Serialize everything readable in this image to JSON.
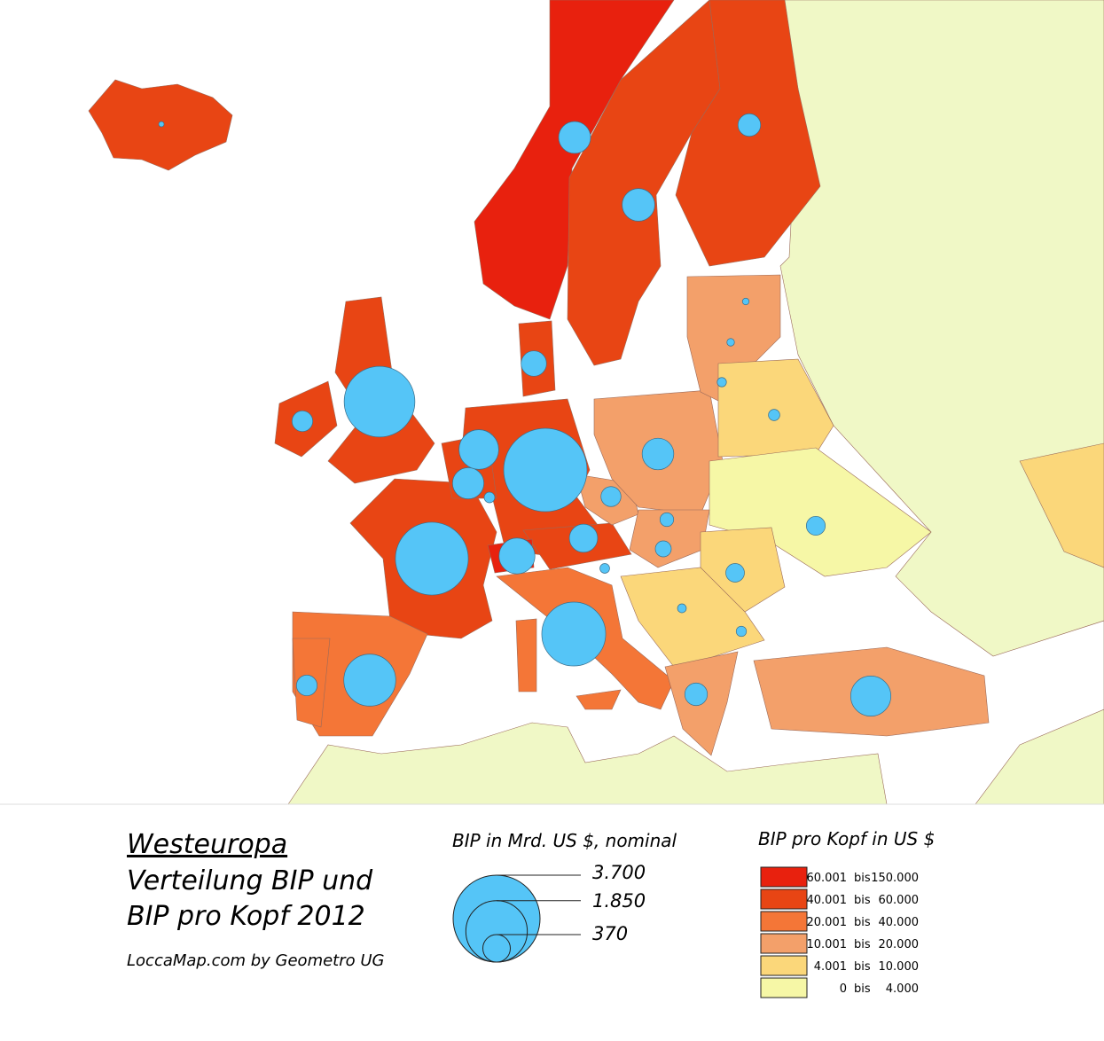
{
  "title": "Westeuropa",
  "subtitle": [
    "Verteilung BIP und",
    "BIP pro Kopf 2012"
  ],
  "credit": "LoccaMap.com by Geometro UG",
  "size_legend": {
    "title": "BIP in Mrd. US $, nominal",
    "steps": [
      {
        "value": 3700,
        "label": "3.700"
      },
      {
        "value": 1850,
        "label": "1.850"
      },
      {
        "value": 370,
        "label": "370"
      }
    ],
    "color": "#55c5f7"
  },
  "color_legend": {
    "title": "BIP pro Kopf in US $",
    "word": "bis",
    "classes": [
      {
        "color": "#e8210e",
        "from": {
          "value": 60001,
          "label": "60.001"
        },
        "to": {
          "value": 150000,
          "label": "150.000"
        }
      },
      {
        "color": "#e84514",
        "from": {
          "value": 40001,
          "label": "40.001"
        },
        "to": {
          "value": 60000,
          "label": "60.000"
        }
      },
      {
        "color": "#f47637",
        "from": {
          "value": 20001,
          "label": "20.001"
        },
        "to": {
          "value": 40000,
          "label": "40.000"
        }
      },
      {
        "color": "#f3a06a",
        "from": {
          "value": 10001,
          "label": "10.001"
        },
        "to": {
          "value": 20000,
          "label": "20.000"
        }
      },
      {
        "color": "#fbd77a",
        "from": {
          "value": 4001,
          "label": "4.001"
        },
        "to": {
          "value": 10000,
          "label": "10.000"
        }
      },
      {
        "color": "#f6f7a6",
        "from": {
          "value": 0,
          "label": "0"
        },
        "to": {
          "value": 4000,
          "label": "4.000"
        }
      }
    ]
  },
  "bubbles": [
    3400,
    2600,
    2450,
    2000,
    1320,
    770,
    790,
    630,
    520,
    500,
    490,
    480,
    390,
    315,
    250,
    250,
    210,
    210,
    196,
    170,
    176,
    125,
    92,
    63,
    46,
    42,
    28,
    22,
    55,
    51,
    38,
    14
  ]
}
